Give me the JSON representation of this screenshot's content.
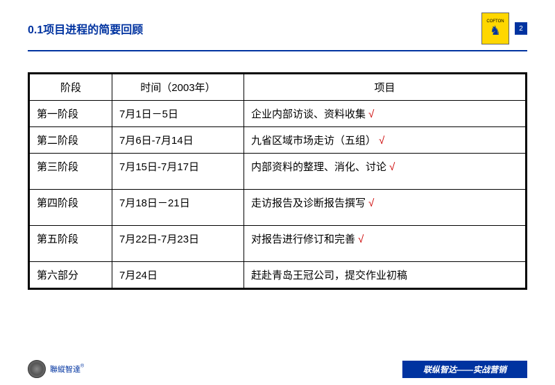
{
  "header": {
    "title": "0.1项目进程的简要回顾",
    "logo_text": "COFTON",
    "page_number": "2"
  },
  "table": {
    "columns": [
      "阶段",
      "时间（2003年）",
      "项目"
    ],
    "rows": [
      {
        "stage": "第一阶段",
        "time": "7月1日－5日",
        "project": "企业内部访谈、资料收集",
        "check": true,
        "tall": false
      },
      {
        "stage": "第二阶段",
        "time": "7月6日-7月14日",
        "project": "九省区域市场走访（五组）",
        "check": true,
        "tall": false
      },
      {
        "stage": "第三阶段",
        "time": "7月15日-7月17日",
        "project": "内部资料的整理、消化、讨论",
        "check": true,
        "tall": true
      },
      {
        "stage": "第四阶段",
        "time": "7月18日－21日",
        "project": "走访报告及诊断报告撰写",
        "check": true,
        "tall": true
      },
      {
        "stage": "第五阶段",
        "time": "7月22日-7月23日",
        "project": "对报告进行修订和完善",
        "check": true,
        "tall": true
      },
      {
        "stage": "第六部分",
        "time": "7月24日",
        "project": "赶赴青岛王冠公司，提交作业初稿",
        "check": false,
        "tall": false
      }
    ]
  },
  "footer": {
    "brand": "聯縱智達",
    "sup": "®",
    "right_text": "联纵智达——实战营销"
  },
  "colors": {
    "primary": "#0033a0",
    "logo_bg": "#ffd700",
    "check": "#cc0000",
    "border": "#000000"
  }
}
